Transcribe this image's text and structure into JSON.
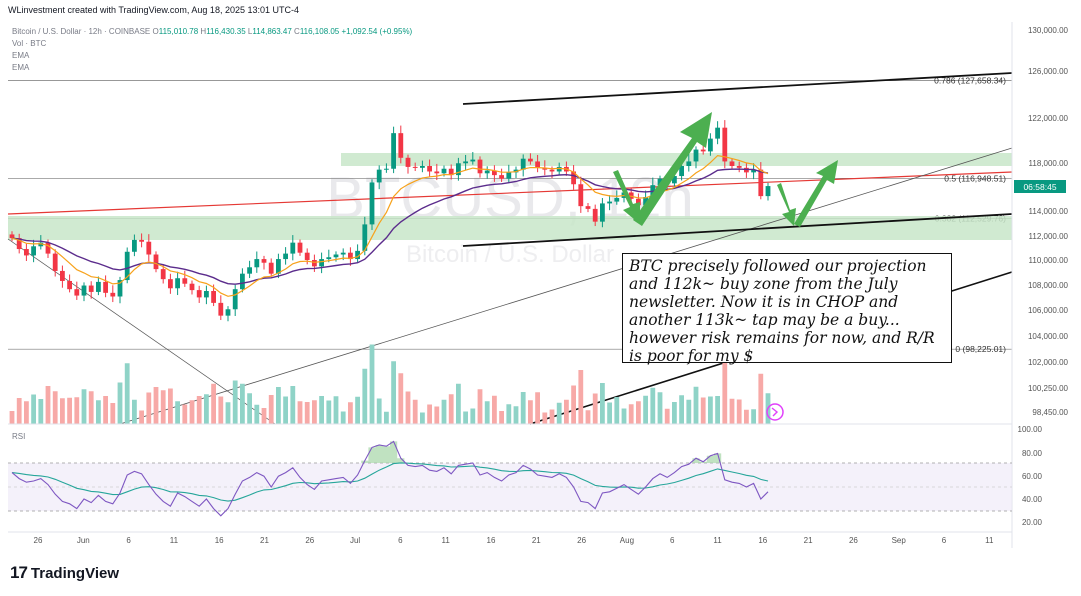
{
  "header": {
    "author_line": "WLinvestment created with TradingView.com, Aug 18, 2025 13:01 UTC-4",
    "symbol_line": "Bitcoin / U.S. Dollar · 12h · COINBASE",
    "ohlc": {
      "O": "115,010.78",
      "H": "116,430.35",
      "L": "114,863.47",
      "C": "116,108.05",
      "change": "+1,092.54 (+0.95%)"
    },
    "vol_label": "Vol · BTC",
    "ema1": "EMA",
    "ema2": "EMA",
    "rsi_label": "RSI"
  },
  "watermark": {
    "ticker": "BTCUSD, 12h",
    "name": "Bitcoin / U.S. Dollar"
  },
  "branding": {
    "logo": "TradingView",
    "logo_mark": "17"
  },
  "note_text": "BTC precisely followed our projection and 112k~ buy zone from the July newsletter. Now it is in CHOP and another 113k~ tap may be a buy... however risk remains for now, and R/R is poor for my $",
  "price_badge": "06:58:45",
  "fib_labels": [
    {
      "label": "0.786 (127,658.34)",
      "price": 127658.34
    },
    {
      "label": "0.5 (116,948.51)",
      "price": 116948.51
    },
    {
      "label": "0.382 (112,529.76)",
      "price": 112529.76
    },
    {
      "label": "0 (98,225.01)",
      "price": 98225.01
    }
  ],
  "colors": {
    "up": "#089981",
    "down": "#f23645",
    "ema_fast": "#f7a21b",
    "ema_slow": "#5b2c8c",
    "zone": "#c8e6c9",
    "arrow": "#4caf50",
    "rsi": "#7e57c2"
  },
  "chart_data": {
    "type": "line",
    "x_axis": {
      "ticks": [
        "26",
        "Jun",
        "6",
        "11",
        "16",
        "21",
        "26",
        "Jul",
        "6",
        "11",
        "16",
        "21",
        "26",
        "Aug",
        "6",
        "11",
        "16",
        "21",
        "26",
        "Sep",
        "6",
        "11"
      ]
    },
    "price_axis": {
      "ticks": [
        "130,000.00",
        "126,000.00",
        "122,000.00",
        "118,000.00",
        "114,000.00",
        "112,000.00",
        "110,000.00",
        "108,000.00",
        "106,000.00",
        "104,000.00",
        "102,000.00",
        "100,250.00",
        "98,450.00"
      ]
    },
    "rsi_axis": {
      "ticks": [
        "100.00",
        "80.00",
        "60.00",
        "40.00",
        "20.00"
      ]
    },
    "series": [
      {
        "values": [
          110400,
          109200,
          108500,
          109500,
          109900,
          108700,
          106800,
          105700,
          104800,
          104100,
          105200,
          104500,
          105600,
          104400,
          104000,
          105800,
          108900,
          110200,
          110000,
          108600,
          107000,
          105900,
          104900,
          106000,
          105400,
          104700,
          103900,
          104600,
          103300,
          101900,
          102600,
          104800,
          106500,
          107200,
          108100,
          107700,
          106500,
          108100,
          108700,
          109900,
          108800,
          108000,
          107300,
          108100,
          108300,
          108600,
          108800,
          108100,
          109000,
          111900,
          116500,
          117900,
          118000,
          121900,
          119200,
          118200,
          118100,
          118300,
          117700,
          117500,
          118000,
          117300,
          118600,
          118800,
          119000,
          117500,
          117800,
          117300,
          116900,
          117600,
          117900,
          119100,
          118800,
          118100,
          117900,
          117700,
          118200,
          117700,
          116300,
          113900,
          113600,
          112200,
          114200,
          114400,
          114800,
          115400,
          114700,
          114000,
          114900,
          116200,
          116900,
          116400,
          117200,
          118300,
          118800,
          120100,
          119900,
          121300,
          122500,
          118800,
          118300,
          118100,
          117600,
          117900,
          115000,
          116100
        ]
      },
      {
        "name": "RSI",
        "values": [
          62,
          57,
          54,
          55,
          57,
          52,
          44,
          38,
          36,
          32,
          40,
          37,
          43,
          38,
          36,
          45,
          60,
          63,
          61,
          52,
          44,
          38,
          34,
          45,
          42,
          38,
          34,
          40,
          32,
          26,
          32,
          44,
          55,
          58,
          62,
          59,
          50,
          59,
          62,
          66,
          58,
          52,
          48,
          55,
          56,
          57,
          58,
          53,
          60,
          72,
          83,
          85,
          84,
          88,
          74,
          68,
          67,
          68,
          64,
          63,
          66,
          61,
          68,
          69,
          70,
          60,
          62,
          58,
          55,
          60,
          62,
          68,
          65,
          60,
          59,
          58,
          61,
          58,
          50,
          38,
          37,
          32,
          45,
          46,
          49,
          52,
          48,
          44,
          50,
          57,
          61,
          58,
          62,
          67,
          69,
          74,
          71,
          76,
          78,
          56,
          54,
          53,
          50,
          53,
          40,
          46
        ]
      }
    ]
  }
}
